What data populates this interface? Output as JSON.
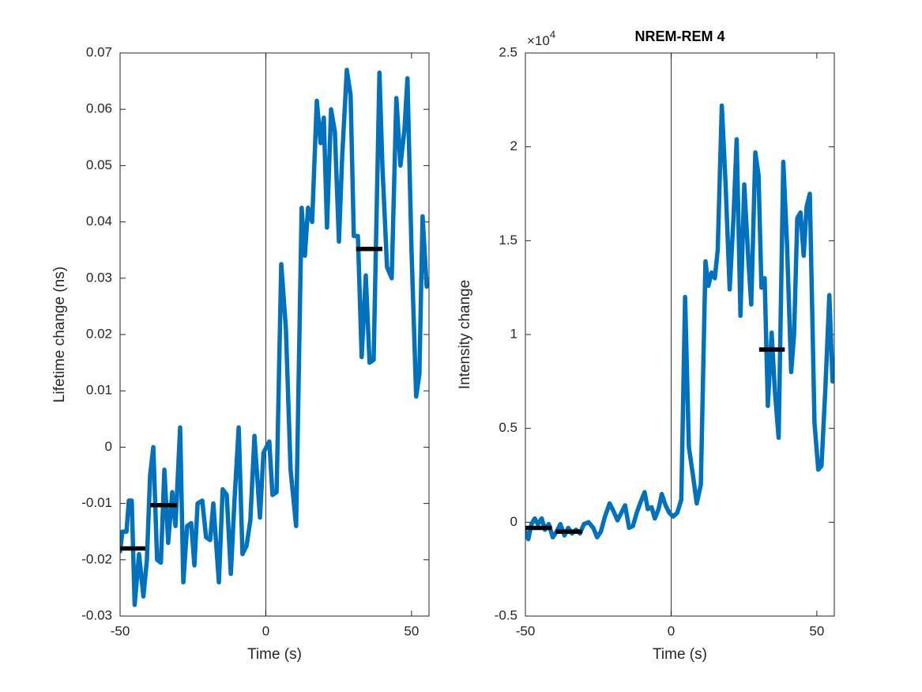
{
  "chart_data": [
    {
      "type": "line",
      "xlabel": "Time (s)",
      "ylabel": "Lifetime change (ns)",
      "xlim": [
        -50,
        56
      ],
      "ylim": [
        -0.03,
        0.07
      ],
      "xticks": [
        -50,
        0,
        50
      ],
      "yticks": [
        -0.03,
        -0.02,
        -0.01,
        0,
        0.01,
        0.02,
        0.03,
        0.04,
        0.05,
        0.06,
        0.07
      ],
      "color": "#0072BD",
      "vline": 0,
      "x": [
        -50,
        -49.2,
        -47.8,
        -47,
        -46,
        -45,
        -43.5,
        -42,
        -40.8,
        -39.7,
        -38.6,
        -37.3,
        -36,
        -34.8,
        -33.5,
        -32.1,
        -31,
        -29.4,
        -28.3,
        -27,
        -25.6,
        -24.5,
        -23.4,
        -21.8,
        -20.5,
        -19.1,
        -18,
        -16.1,
        -14.8,
        -13.4,
        -12,
        -10.7,
        -9.3,
        -8,
        -6.6,
        -5.3,
        -3.9,
        -2,
        -0.8,
        1.2,
        2.3,
        3.7,
        5.3,
        6.9,
        8.5,
        10.4,
        12.3,
        13.4,
        14.5,
        15.9,
        17.5,
        18.8,
        19.9,
        21,
        22.4,
        23.7,
        25.1,
        26.2,
        27.8,
        29.1,
        30.2,
        31.6,
        32.9,
        34.3,
        35.6,
        37,
        39,
        40,
        41.6,
        43.2,
        44.8,
        46.2,
        47.6,
        48.6,
        50,
        51.6,
        52.7,
        53.8,
        55.2
      ],
      "values": [
        -0.0185,
        -0.015,
        -0.015,
        -0.0095,
        -0.0095,
        -0.028,
        -0.019,
        -0.0265,
        -0.02,
        -0.005,
        0,
        -0.02,
        -0.0205,
        -0.004,
        -0.017,
        -0.008,
        -0.014,
        0.0035,
        -0.024,
        -0.014,
        -0.0135,
        -0.021,
        -0.01,
        -0.0095,
        -0.016,
        -0.0165,
        -0.01,
        -0.024,
        -0.0075,
        -0.0085,
        -0.0225,
        -0.009,
        0.0035,
        -0.019,
        -0.0175,
        -0.013,
        0.002,
        -0.0125,
        -0.001,
        0.001,
        -0.0085,
        -0.008,
        0.0325,
        0.021,
        -0.004,
        -0.014,
        0.0425,
        0.034,
        0.0425,
        0.04,
        0.0615,
        0.054,
        0.0585,
        0.039,
        0.06,
        0.056,
        0.0365,
        0.0515,
        0.067,
        0.0625,
        0.0375,
        0.0375,
        0.016,
        0.0305,
        0.015,
        0.0155,
        0.0665,
        0.05,
        0.032,
        0.03,
        0.062,
        0.05,
        0.0565,
        0.0655,
        0.035,
        0.009,
        0.013,
        0.041,
        0.0285
      ],
      "mean_segments": [
        {
          "x": [
            -50,
            -41.3
          ],
          "y": -0.018
        },
        {
          "x": [
            -39.7,
            -30.5
          ],
          "y": -0.0103
        },
        {
          "x": [
            31,
            40
          ],
          "y": 0.0352
        }
      ],
      "segment_color": "#000000"
    },
    {
      "type": "line",
      "title": "NREM-REM 4",
      "xlabel": "Time (s)",
      "ylabel": "Intensity change",
      "y_multiplier": {
        "base": "×10",
        "exponent": "4"
      },
      "xlim": [
        -50,
        56
      ],
      "ylim": [
        -5000,
        25000
      ],
      "xticks": [
        -50,
        0,
        50
      ],
      "yticks": [
        {
          "value": -5000,
          "label": "-0.5"
        },
        {
          "value": 0,
          "label": "0"
        },
        {
          "value": 5000,
          "label": "0.5"
        },
        {
          "value": 10000,
          "label": "1"
        },
        {
          "value": 15000,
          "label": "1.5"
        },
        {
          "value": 20000,
          "label": "2"
        },
        {
          "value": 25000,
          "label": "2.5"
        }
      ],
      "color": "#0072BD",
      "vline": 0,
      "x": [
        -50,
        -49,
        -47.9,
        -46.8,
        -45.7,
        -44.4,
        -43.3,
        -42,
        -40.6,
        -39.3,
        -38,
        -36.6,
        -35.3,
        -34,
        -32.6,
        -31.3,
        -29.9,
        -28.3,
        -26.7,
        -25.4,
        -24.1,
        -22.7,
        -21.1,
        -19.8,
        -18.4,
        -17.1,
        -15.8,
        -14.4,
        -13.1,
        -11.8,
        -10.4,
        -9.1,
        -8,
        -6.7,
        -5.6,
        -4.3,
        -3.2,
        -1.9,
        -0.6,
        0.7,
        2.1,
        3.5,
        4.8,
        6.1,
        7.5,
        8.8,
        10.2,
        11.8,
        12.8,
        13.9,
        15,
        16,
        17.4,
        18.7,
        20.1,
        21.4,
        22.5,
        23.8,
        25.1,
        26.5,
        27.5,
        28.9,
        30,
        31,
        32.1,
        33.2,
        34.5,
        35.6,
        36.9,
        38.5,
        39.8,
        41.2,
        42.2,
        43.3,
        44.4,
        45.5,
        46.5,
        47.6,
        49.2,
        50.5,
        51.6,
        52.9,
        54.3,
        55.4
      ],
      "values": [
        -500,
        -900,
        -100,
        200,
        -100,
        200,
        -400,
        -100,
        -800,
        -500,
        -100,
        -700,
        -300,
        -600,
        -400,
        -600,
        -100,
        0,
        -300,
        -800,
        -500,
        300,
        1000,
        600,
        100,
        500,
        900,
        -300,
        -200,
        500,
        1100,
        1600,
        700,
        800,
        200,
        700,
        1500,
        900,
        500,
        300,
        500,
        1200,
        12000,
        4000,
        2500,
        1000,
        2000,
        13900,
        12600,
        13300,
        13000,
        14500,
        22200,
        18000,
        12400,
        16200,
        20400,
        11000,
        18000,
        14000,
        11600,
        19700,
        18500,
        12500,
        13000,
        6200,
        10100,
        7000,
        4500,
        19200,
        14700,
        8000,
        10000,
        16200,
        16500,
        14200,
        16800,
        17500,
        5300,
        2800,
        3000,
        7000,
        12100,
        7500
      ],
      "mean_segments": [
        {
          "x": [
            -50,
            -40.9
          ],
          "y": -300
        },
        {
          "x": [
            -39.6,
            -30.5
          ],
          "y": -500
        },
        {
          "x": [
            30.2,
            39
          ],
          "y": 9200
        }
      ],
      "segment_color": "#000000"
    }
  ]
}
